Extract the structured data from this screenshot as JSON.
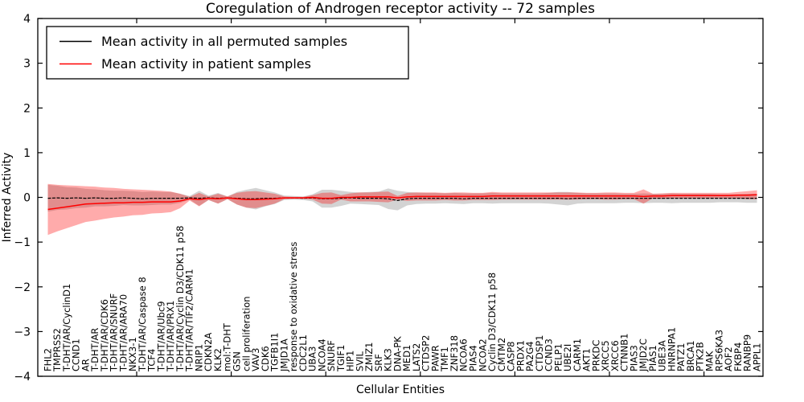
{
  "chart_data": {
    "type": "line",
    "title": "Coregulation of Androgen receptor activity -- 72 samples",
    "xlabel": "Cellular Entities",
    "ylabel": "Inferred Activity",
    "ylim": [
      -4,
      4
    ],
    "grid": false,
    "legend_position": "upper left",
    "ytick_values": [
      4,
      3,
      2,
      1,
      0,
      -1,
      -2,
      -3,
      -4
    ],
    "ytick_labels": [
      "4",
      "3",
      "2",
      "1",
      "0",
      "−1",
      "−2",
      "−3",
      "−4"
    ],
    "legend": [
      {
        "label": "Mean activity in all permuted samples",
        "color": "#000000"
      },
      {
        "label": "Mean activity in patient samples",
        "color": "#ff0000"
      }
    ],
    "categories": [
      "FHL2",
      "TMPRSS2",
      "T-DHT/AR/CyclinD1",
      "CCND1",
      "AR",
      "T-DHT/AR",
      "T-DHT/AR/CDK6",
      "T-DHT/AR/SNURF",
      "T-DHT/AR/ARA70",
      "NKX3-1",
      "T-DHT/AR/Caspase 8",
      "TCF4",
      "T-DHT/AR/Ubc9",
      "T-DHT/AR/PRX1",
      "T-DHT/AR/Cyclin D3/CDK11 p58",
      "T-DHT/AR/TIF2/CARM1",
      "NRIP1",
      "CDKN2A",
      "KLK2",
      "mol:T-DHT",
      "GSN",
      "cell proliferation",
      "VAV3",
      "CDK6",
      "TGFB1I1",
      "JMJD1A",
      "response to oxidative stress",
      "CDC2L1",
      "UBA3",
      "NCOA4",
      "SNURF",
      "TGIF1",
      "HIP1",
      "SVIL",
      "ZMIZ1",
      "SRF",
      "KLK3",
      "DNA-PK",
      "MED1",
      "LATS2",
      "CTDSP2",
      "PAWR",
      "TMF1",
      "ZNF318",
      "NCOA6",
      "PIAS4",
      "NCOA2",
      "Cyclin D3/CDK11 p58",
      "CMTM2",
      "CASP8",
      "PRDX1",
      "PA2G4",
      "CTDSP1",
      "CCND3",
      "PELP1",
      "UBE2I",
      "CARM1",
      "AKT1",
      "PRKDC",
      "XRCC5",
      "XRCC6",
      "CTNNB1",
      "PIAS3",
      "JMJD2C",
      "PIAS1",
      "UBE3A",
      "HNRNPA1",
      "PATZ1",
      "BRCA1",
      "PTK2B",
      "MAK",
      "RPS6KA3",
      "AOF2",
      "FKBP4",
      "RANBP9",
      "APPL1"
    ],
    "series": [
      {
        "name": "Mean activity in all permuted samples",
        "color": "#000000",
        "band_color": "#808080",
        "band_opacity": 0.35,
        "mean": [
          -0.02,
          -0.01,
          -0.02,
          -0.01,
          -0.02,
          -0.01,
          -0.02,
          -0.02,
          -0.01,
          -0.02,
          -0.03,
          -0.02,
          -0.02,
          -0.02,
          -0.02,
          -0.01,
          -0.02,
          -0.01,
          -0.02,
          -0.01,
          -0.02,
          -0.03,
          -0.03,
          -0.02,
          -0.02,
          -0.01,
          -0.01,
          -0.02,
          -0.01,
          -0.03,
          -0.03,
          -0.02,
          -0.01,
          -0.02,
          -0.02,
          -0.02,
          -0.03,
          -0.07,
          -0.03,
          -0.02,
          -0.02,
          -0.02,
          -0.02,
          -0.02,
          -0.03,
          -0.02,
          -0.02,
          -0.02,
          -0.02,
          -0.02,
          -0.02,
          -0.02,
          -0.02,
          -0.02,
          -0.02,
          -0.03,
          -0.02,
          -0.02,
          -0.02,
          -0.02,
          -0.02,
          -0.02,
          -0.02,
          -0.02,
          -0.02,
          -0.02,
          -0.02,
          -0.02,
          -0.02,
          -0.02,
          -0.02,
          -0.02,
          -0.02,
          -0.02,
          -0.02,
          -0.02
        ],
        "std": [
          0.3,
          0.27,
          0.25,
          0.23,
          0.21,
          0.19,
          0.18,
          0.17,
          0.16,
          0.16,
          0.15,
          0.15,
          0.14,
          0.14,
          0.1,
          0.04,
          0.17,
          0.05,
          0.12,
          0.03,
          0.14,
          0.2,
          0.24,
          0.18,
          0.13,
          0.05,
          0.04,
          0.04,
          0.08,
          0.2,
          0.2,
          0.17,
          0.13,
          0.13,
          0.14,
          0.15,
          0.23,
          0.22,
          0.15,
          0.13,
          0.12,
          0.12,
          0.11,
          0.12,
          0.12,
          0.11,
          0.11,
          0.12,
          0.11,
          0.11,
          0.11,
          0.11,
          0.11,
          0.12,
          0.14,
          0.15,
          0.12,
          0.11,
          0.11,
          0.11,
          0.11,
          0.1,
          0.1,
          0.11,
          0.1,
          0.1,
          0.11,
          0.1,
          0.1,
          0.1,
          0.1,
          0.09,
          0.09,
          0.09,
          0.1,
          0.1
        ]
      },
      {
        "name": "Mean activity in patient samples",
        "color": "#ff0000",
        "band_color": "#ff0000",
        "band_opacity": 0.33,
        "mean": [
          -0.27,
          -0.24,
          -0.21,
          -0.18,
          -0.15,
          -0.14,
          -0.13,
          -0.12,
          -0.12,
          -0.11,
          -0.11,
          -0.1,
          -0.1,
          -0.1,
          -0.08,
          -0.03,
          -0.05,
          -0.02,
          -0.03,
          -0.01,
          -0.03,
          -0.05,
          -0.05,
          -0.04,
          -0.03,
          -0.01,
          -0.01,
          -0.01,
          0.0,
          -0.02,
          -0.02,
          0.0,
          0.0,
          0.01,
          0.01,
          0.01,
          0.01,
          -0.01,
          0.01,
          0.02,
          0.02,
          0.02,
          0.02,
          0.02,
          0.02,
          0.02,
          0.02,
          0.03,
          0.03,
          0.03,
          0.03,
          0.03,
          0.03,
          0.03,
          0.03,
          0.03,
          0.03,
          0.03,
          0.03,
          0.03,
          0.03,
          0.03,
          0.03,
          0.02,
          0.03,
          0.03,
          0.04,
          0.04,
          0.04,
          0.04,
          0.04,
          0.04,
          0.04,
          0.05,
          0.05,
          0.06
        ],
        "std": [
          0.57,
          0.52,
          0.48,
          0.44,
          0.4,
          0.38,
          0.35,
          0.33,
          0.31,
          0.29,
          0.28,
          0.26,
          0.25,
          0.23,
          0.16,
          0.04,
          0.15,
          0.04,
          0.11,
          0.03,
          0.13,
          0.18,
          0.19,
          0.15,
          0.11,
          0.03,
          0.02,
          0.02,
          0.05,
          0.12,
          0.13,
          0.05,
          0.09,
          0.1,
          0.1,
          0.11,
          0.12,
          0.04,
          0.09,
          0.09,
          0.09,
          0.09,
          0.08,
          0.09,
          0.09,
          0.08,
          0.08,
          0.09,
          0.08,
          0.08,
          0.08,
          0.08,
          0.08,
          0.08,
          0.08,
          0.08,
          0.08,
          0.07,
          0.07,
          0.08,
          0.08,
          0.07,
          0.07,
          0.16,
          0.05,
          0.06,
          0.06,
          0.06,
          0.06,
          0.06,
          0.06,
          0.06,
          0.06,
          0.07,
          0.09,
          0.1
        ]
      }
    ]
  }
}
